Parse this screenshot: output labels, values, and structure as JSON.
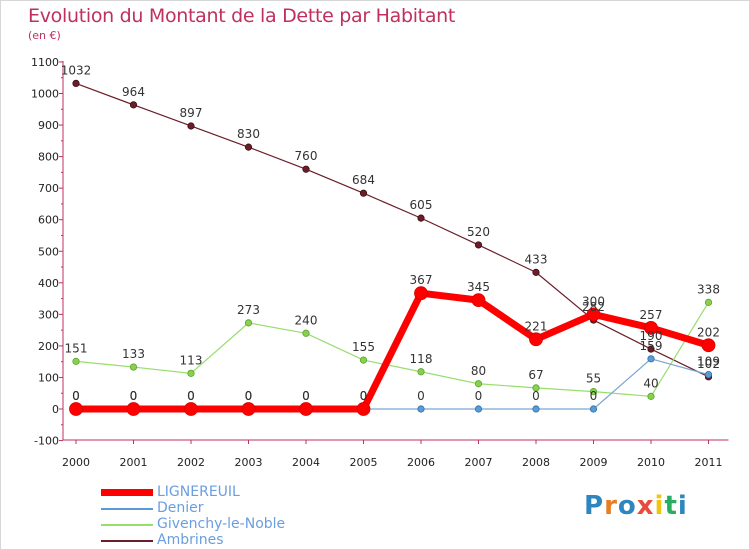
{
  "chart_data": {
    "type": "line",
    "title": "Evolution du Montant de la Dette par Habitant",
    "subtitle": "(en €)",
    "x": [
      "2000",
      "2001",
      "2002",
      "2003",
      "2004",
      "2005",
      "2006",
      "2007",
      "2008",
      "2009",
      "2010",
      "2011"
    ],
    "ylim": [
      -100,
      1100
    ],
    "yticks": [
      -100,
      0,
      100,
      200,
      300,
      400,
      500,
      600,
      700,
      800,
      900,
      1000,
      1100
    ],
    "grid": false,
    "legend_position": "bottom-left",
    "series": [
      {
        "name": "Ambrines",
        "color": "#6b1e28",
        "values": [
          1032,
          964,
          897,
          830,
          760,
          684,
          605,
          520,
          433,
          282,
          190,
          102
        ]
      },
      {
        "name": "Givenchy-le-Noble",
        "color": "#99dd6e",
        "values": [
          151,
          133,
          113,
          273,
          240,
          155,
          118,
          80,
          67,
          55,
          40,
          338
        ]
      },
      {
        "name": "Denier",
        "color": "#5b9bd5",
        "values": [
          0,
          0,
          0,
          0,
          0,
          0,
          0,
          0,
          0,
          0,
          159,
          109
        ]
      },
      {
        "name": "LIGNEREUIL",
        "color": "#ff0000",
        "values": [
          0,
          0,
          0,
          0,
          0,
          0,
          367,
          345,
          221,
          300,
          257,
          202
        ]
      }
    ]
  },
  "legend": {
    "items": [
      {
        "label": "LIGNEREUIL",
        "color": "#ff0000"
      },
      {
        "label": "Denier",
        "color": "#5b9bd5"
      },
      {
        "label": "Givenchy-le-Noble",
        "color": "#99dd6e"
      },
      {
        "label": "Ambrines",
        "color": "#6b1e28"
      }
    ]
  },
  "logo": {
    "letters": [
      "P",
      "r",
      "o",
      "x",
      "i",
      "t",
      "i"
    ],
    "colors": [
      "#2e86c1",
      "#e67e22",
      "#2e86c1",
      "#e74c3c",
      "#f1c40f",
      "#27ae60",
      "#2e86c1"
    ]
  }
}
